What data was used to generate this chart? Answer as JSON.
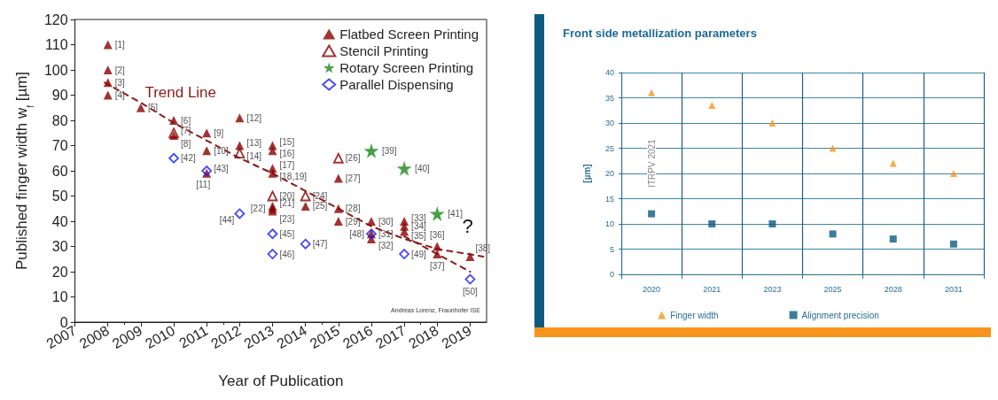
{
  "chart_data": [
    {
      "type": "scatter",
      "xlabel": "Year of Publication",
      "ylabel": "Published finger width w$_{f}$ [µm]",
      "xlim": [
        2007,
        2019.5
      ],
      "xticks": [
        2007,
        2008,
        2009,
        2010,
        2011,
        2012,
        2013,
        2014,
        2015,
        2016,
        2017,
        2018,
        2019
      ],
      "ylim": [
        0,
        120
      ],
      "yticks": [
        0,
        10,
        20,
        30,
        40,
        50,
        60,
        70,
        80,
        90,
        100,
        110,
        120
      ],
      "grid": false,
      "legend": "top right",
      "series": [
        {
          "type": "line",
          "color": "#8b1a1a",
          "line_style": "dashed",
          "marker": "none",
          "x": [
            2007.9,
            2009,
            2010,
            2011,
            2012,
            2013,
            2014,
            2015,
            2016,
            2017,
            2018,
            2019.4
          ],
          "values": [
            95,
            87,
            79,
            72,
            65,
            59,
            52,
            45,
            38,
            33,
            29,
            26
          ]
        },
        {
          "type": "line",
          "color": "#8b1a1a",
          "line_style": "dashed",
          "marker": "none",
          "x": [
            2017,
            2018,
            2019
          ],
          "values": [
            34,
            27,
            20
          ]
        },
        {
          "name": "Flatbed Screen Printing",
          "color": "#8b0000",
          "marker": "triangle",
          "x": [
            2008,
            2008,
            2008,
            2008,
            2009,
            2010,
            2010,
            2011,
            2011,
            2011,
            2012,
            2012,
            2013,
            2013,
            2013,
            2013,
            2013,
            2013,
            2013,
            2014,
            2015,
            2015,
            2015,
            2016,
            2016,
            2016,
            2017,
            2017,
            2017,
            2018,
            2018,
            2019
          ],
          "values": [
            110,
            100,
            95,
            90,
            85,
            80,
            74,
            75,
            68,
            59,
            81,
            70,
            70,
            68,
            61,
            59,
            46,
            45,
            44,
            46,
            57,
            45,
            40,
            40,
            35,
            33,
            40,
            38,
            36,
            30,
            27,
            26
          ]
        },
        {
          "name": "Stencil Printing",
          "color": "#8b0000",
          "marker": "triangle-open",
          "x": [
            2010,
            2012,
            2013,
            2014,
            2015
          ],
          "values": [
            75,
            67,
            50,
            50,
            65
          ]
        },
        {
          "name": "Rotary Screen Printing",
          "color": "#1a8a1a",
          "marker": "star",
          "x": [
            2016,
            2017,
            2018
          ],
          "values": [
            68,
            61,
            43
          ]
        },
        {
          "name": "Parallel Dispensing",
          "color": "#1a1aff",
          "marker": "diamond-open",
          "x": [
            2010,
            2011,
            2012,
            2013,
            2013,
            2014,
            2016,
            2017,
            2019
          ],
          "values": [
            65,
            60,
            43,
            35,
            27,
            31,
            35,
            27,
            17
          ]
        }
      ],
      "annotations": [
        {
          "text": "[1]",
          "x": 2008,
          "y": 110
        },
        {
          "text": "[2]",
          "x": 2008,
          "y": 100
        },
        {
          "text": "[3]",
          "x": 2008,
          "y": 95
        },
        {
          "text": "[4]",
          "x": 2008,
          "y": 90
        },
        {
          "text": "[5]",
          "x": 2009,
          "y": 85
        },
        {
          "text": "[6]",
          "x": 2010,
          "y": 80
        },
        {
          "text": "[7]",
          "x": 2010,
          "y": 75
        },
        {
          "text": "[8]",
          "x": 2010,
          "y": 74
        },
        {
          "text": "[9]",
          "x": 2011,
          "y": 75
        },
        {
          "text": "[10]",
          "x": 2011,
          "y": 68
        },
        {
          "text": "[11]",
          "x": 2011,
          "y": 59
        },
        {
          "text": "[12]",
          "x": 2012,
          "y": 81
        },
        {
          "text": "[13]",
          "x": 2012,
          "y": 70
        },
        {
          "text": "[14]",
          "x": 2012,
          "y": 67
        },
        {
          "text": "[15]",
          "x": 2013,
          "y": 70
        },
        {
          "text": "[16]",
          "x": 2013,
          "y": 68
        },
        {
          "text": "[17]",
          "x": 2013,
          "y": 61
        },
        {
          "text": "[18,19]",
          "x": 2013,
          "y": 59
        },
        {
          "text": "[20]",
          "x": 2013,
          "y": 50
        },
        {
          "text": "[21]",
          "x": 2013,
          "y": 46
        },
        {
          "text": "[22]",
          "x": 2013,
          "y": 45
        },
        {
          "text": "[23]",
          "x": 2013,
          "y": 44
        },
        {
          "text": "[24]",
          "x": 2014,
          "y": 50
        },
        {
          "text": "[25]",
          "x": 2014,
          "y": 46
        },
        {
          "text": "[26]",
          "x": 2015,
          "y": 65
        },
        {
          "text": "[27]",
          "x": 2015,
          "y": 57
        },
        {
          "text": "[28]",
          "x": 2015,
          "y": 45
        },
        {
          "text": "[29]",
          "x": 2015,
          "y": 40
        },
        {
          "text": "[30]",
          "x": 2016,
          "y": 40
        },
        {
          "text": "[31]",
          "x": 2016,
          "y": 35
        },
        {
          "text": "[32]",
          "x": 2016,
          "y": 33
        },
        {
          "text": "[33]",
          "x": 2017,
          "y": 40
        },
        {
          "text": "[34]",
          "x": 2017,
          "y": 38
        },
        {
          "text": "[35]",
          "x": 2017,
          "y": 36
        },
        {
          "text": "[36]",
          "x": 2018,
          "y": 30
        },
        {
          "text": "[37]",
          "x": 2018,
          "y": 27
        },
        {
          "text": "[38]",
          "x": 2019,
          "y": 26
        },
        {
          "text": "[39]",
          "x": 2016,
          "y": 68
        },
        {
          "text": "[40]",
          "x": 2017,
          "y": 61
        },
        {
          "text": "[41]",
          "x": 2018,
          "y": 43
        },
        {
          "text": "[42]",
          "x": 2010,
          "y": 65
        },
        {
          "text": "[43]",
          "x": 2011,
          "y": 60
        },
        {
          "text": "[44]",
          "x": 2012,
          "y": 43
        },
        {
          "text": "[45]",
          "x": 2013,
          "y": 35
        },
        {
          "text": "[46]",
          "x": 2013,
          "y": 27
        },
        {
          "text": "[47]",
          "x": 2014,
          "y": 31
        },
        {
          "text": "[48]",
          "x": 2016,
          "y": 35
        },
        {
          "text": "[49]",
          "x": 2017,
          "y": 27
        },
        {
          "text": "[50]",
          "x": 2019,
          "y": 17
        },
        "Trend Line",
        "?",
        "Andreas Lorenz, Fraunhofer ISE"
      ]
    },
    {
      "type": "scatter",
      "title": "Front side metallization parameters",
      "ylabel": "[µm]",
      "categories": [
        "2020",
        "2021",
        "2023",
        "2025",
        "2028",
        "2031"
      ],
      "ylim": [
        0,
        40
      ],
      "yticks": [
        0,
        5,
        10,
        15,
        20,
        25,
        30,
        35,
        40
      ],
      "grid": true,
      "legend": "bottom",
      "series": [
        {
          "name": "Finger width",
          "color": "#f7941d",
          "marker": "triangle",
          "values": [
            36,
            33.5,
            30,
            25,
            22,
            20
          ]
        },
        {
          "name": "Alignment precision",
          "color": "#0d5c80",
          "marker": "square",
          "values": [
            12,
            10,
            10,
            8,
            7,
            6
          ]
        }
      ],
      "annotations": [
        "ITRPV 2021"
      ]
    }
  ]
}
